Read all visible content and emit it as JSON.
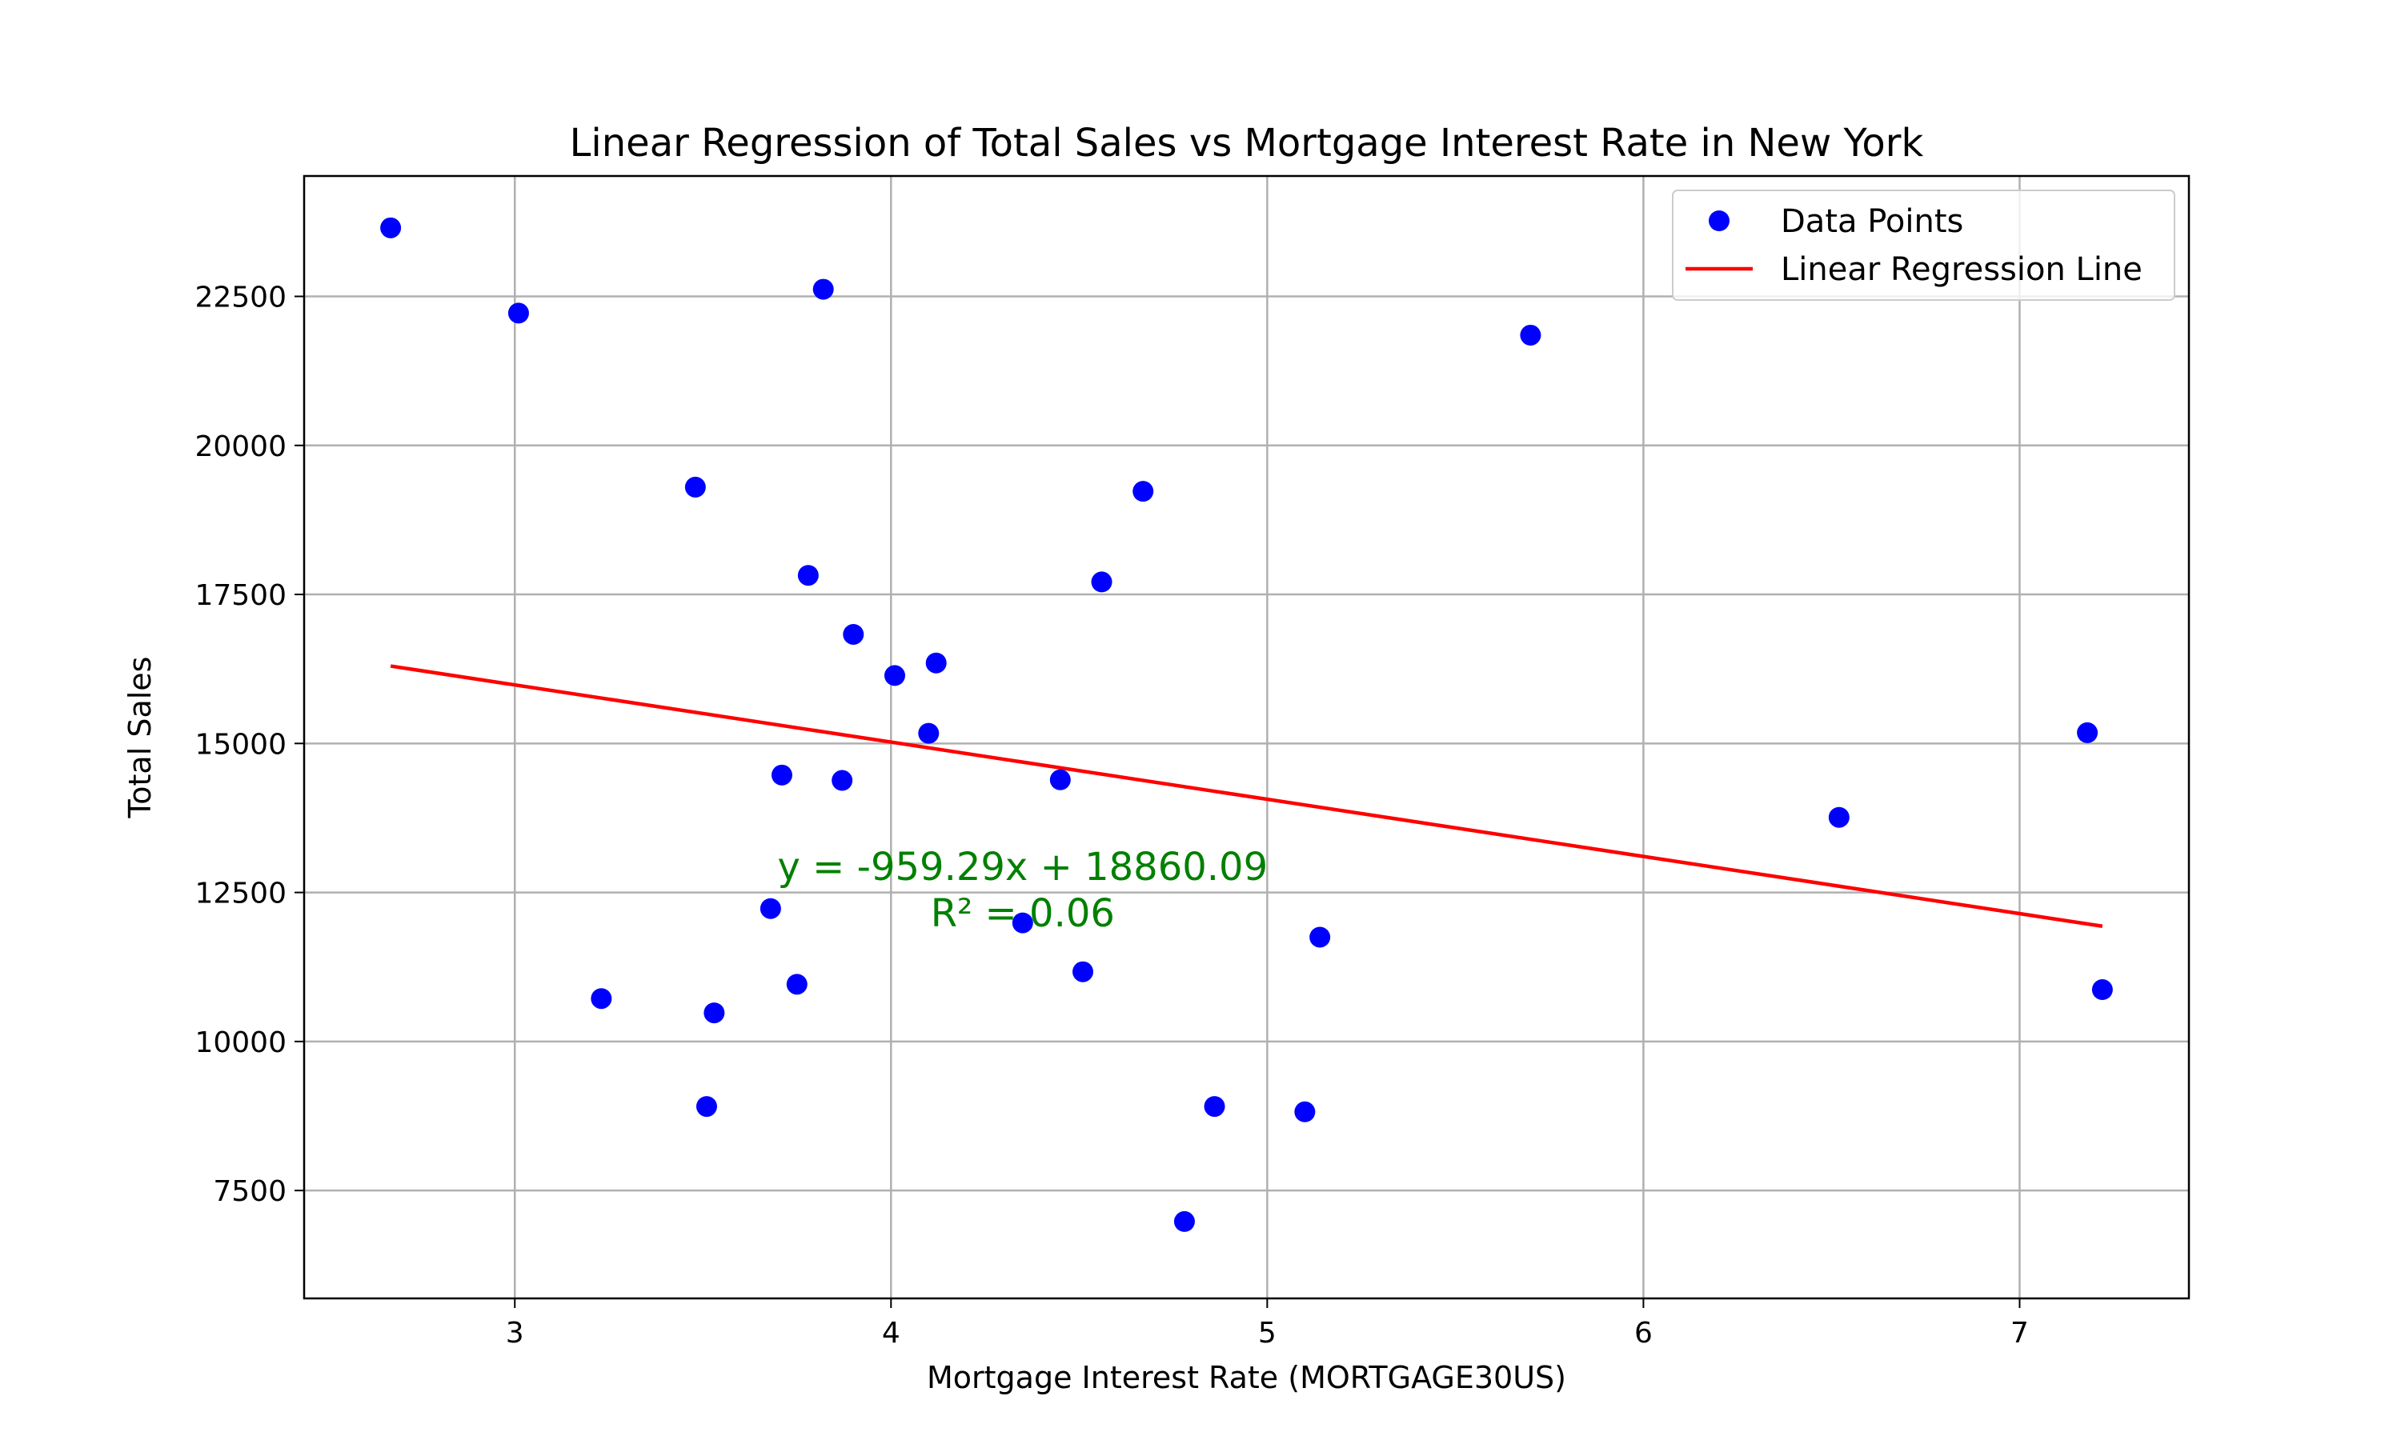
{
  "chart_data": {
    "type": "scatter",
    "title": "Linear Regression of Total Sales vs Mortgage Interest Rate in New York",
    "xlabel": "Mortgage Interest Rate (MORTGAGE30US)",
    "ylabel": "Total Sales",
    "xlim": [
      2.44,
      7.45
    ],
    "ylim": [
      5690,
      24520
    ],
    "xticks": [
      3,
      4,
      5,
      6,
      7
    ],
    "xtick_labels": [
      "3",
      "4",
      "5",
      "6",
      "7"
    ],
    "yticks": [
      7500,
      10000,
      12500,
      15000,
      17500,
      20000,
      22500
    ],
    "ytick_labels": [
      "7500",
      "10000",
      "12500",
      "15000",
      "17500",
      "20000",
      "22500"
    ],
    "grid": true,
    "legend_position": "top-right",
    "series": [
      {
        "name": "Data Points",
        "kind": "scatter",
        "color": "#0000ff",
        "points": [
          [
            2.67,
            23650
          ],
          [
            3.01,
            22220
          ],
          [
            3.82,
            22620
          ],
          [
            5.7,
            21850
          ],
          [
            3.48,
            19300
          ],
          [
            4.67,
            19230
          ],
          [
            3.78,
            17820
          ],
          [
            4.56,
            17710
          ],
          [
            3.9,
            16830
          ],
          [
            4.01,
            16140
          ],
          [
            4.12,
            16350
          ],
          [
            4.1,
            15170
          ],
          [
            7.18,
            15180
          ],
          [
            3.71,
            14470
          ],
          [
            3.87,
            14380
          ],
          [
            4.45,
            14390
          ],
          [
            6.52,
            13760
          ],
          [
            3.68,
            12230
          ],
          [
            4.35,
            11990
          ],
          [
            5.14,
            11750
          ],
          [
            4.51,
            11170
          ],
          [
            3.75,
            10960
          ],
          [
            3.23,
            10720
          ],
          [
            3.53,
            10480
          ],
          [
            7.22,
            10870
          ],
          [
            3.51,
            8910
          ],
          [
            4.86,
            8910
          ],
          [
            5.1,
            8820
          ],
          [
            4.78,
            6980
          ]
        ]
      },
      {
        "name": "Linear Regression Line",
        "kind": "line",
        "color": "#ff0000",
        "points": [
          [
            2.67,
            16298.8
          ],
          [
            7.22,
            11934.1
          ]
        ]
      }
    ],
    "annotation": {
      "color": "#008000",
      "equation": "y = -959.29x + 18860.09",
      "r_squared": "R² = 0.06",
      "anchor_x": 4.35,
      "anchor_y": 12170
    }
  }
}
